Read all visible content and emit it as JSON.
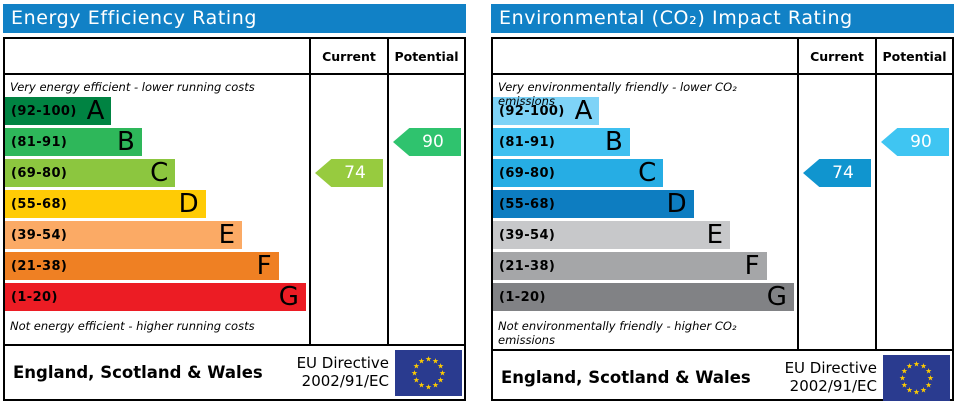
{
  "charts": [
    {
      "title": "Energy Efficiency Rating",
      "header": {
        "current": "Current",
        "potential": "Potential"
      },
      "top_note": "Very energy efficient - lower running costs",
      "bottom_note": "Not energy efficient - higher running costs",
      "bands": [
        {
          "range": "(92-100)",
          "letter": "A",
          "color": "#008342",
          "width_pct": 35
        },
        {
          "range": "(81-91)",
          "letter": "B",
          "color": "#2eb75a",
          "width_pct": 45
        },
        {
          "range": "(69-80)",
          "letter": "C",
          "color": "#8cc63f",
          "width_pct": 56
        },
        {
          "range": "(55-68)",
          "letter": "D",
          "color": "#ffcb05",
          "width_pct": 66
        },
        {
          "range": "(39-54)",
          "letter": "E",
          "color": "#fbaa65",
          "width_pct": 78
        },
        {
          "range": "(21-38)",
          "letter": "F",
          "color": "#ef8023",
          "width_pct": 90
        },
        {
          "range": "(1-20)",
          "letter": "G",
          "color": "#ec1c24",
          "width_pct": 99
        }
      ],
      "current": {
        "value": "74",
        "band": "C",
        "row": 2,
        "color": "#97cb3f"
      },
      "potential": {
        "value": "90",
        "band": "B",
        "row": 1,
        "color": "#2fc36e"
      },
      "footer": {
        "region": "England, Scotland & Wales",
        "directive": [
          "EU Directive",
          "2002/91/EC"
        ],
        "flag_colors": {
          "field": "#2a3b8f",
          "stars": "#ffcc00"
        }
      }
    },
    {
      "title": "Environmental (CO₂) Impact Rating",
      "header": {
        "current": "Current",
        "potential": "Potential"
      },
      "top_note": "Very environmentally friendly - lower CO₂ emissions",
      "bottom_note": "Not environmentally friendly - higher CO₂ emissions",
      "bands": [
        {
          "range": "(92-100)",
          "letter": "A",
          "color": "#7ed3f7",
          "width_pct": 35
        },
        {
          "range": "(81-91)",
          "letter": "B",
          "color": "#3fc0f0",
          "width_pct": 45
        },
        {
          "range": "(69-80)",
          "letter": "C",
          "color": "#26ade4",
          "width_pct": 56
        },
        {
          "range": "(55-68)",
          "letter": "D",
          "color": "#0d7dc1",
          "width_pct": 66
        },
        {
          "range": "(39-54)",
          "letter": "E",
          "color": "#c7c8ca",
          "width_pct": 78
        },
        {
          "range": "(21-38)",
          "letter": "F",
          "color": "#a5a6a8",
          "width_pct": 90
        },
        {
          "range": "(1-20)",
          "letter": "G",
          "color": "#818285",
          "width_pct": 99
        }
      ],
      "current": {
        "value": "74",
        "band": "C",
        "row": 2,
        "color": "#1095cf"
      },
      "potential": {
        "value": "90",
        "band": "B",
        "row": 1,
        "color": "#3fc5f2"
      },
      "footer": {
        "region": "England, Scotland & Wales",
        "directive": [
          "EU Directive",
          "2002/91/EC"
        ],
        "flag_colors": {
          "field": "#2a3b8f",
          "stars": "#ffcc00"
        }
      }
    }
  ],
  "ui_colors": {
    "title_bar": "#1181c6"
  },
  "chart_data": [
    {
      "type": "table",
      "title": "Energy Efficiency Rating",
      "bands": [
        {
          "letter": "A",
          "min": 92,
          "max": 100
        },
        {
          "letter": "B",
          "min": 81,
          "max": 91
        },
        {
          "letter": "C",
          "min": 69,
          "max": 80
        },
        {
          "letter": "D",
          "min": 55,
          "max": 68
        },
        {
          "letter": "E",
          "min": 39,
          "max": 54
        },
        {
          "letter": "F",
          "min": 21,
          "max": 38
        },
        {
          "letter": "G",
          "min": 1,
          "max": 20
        }
      ],
      "current": {
        "value": 74,
        "band": "C"
      },
      "potential": {
        "value": 90,
        "band": "B"
      }
    },
    {
      "type": "table",
      "title": "Environmental (CO₂) Impact Rating",
      "bands": [
        {
          "letter": "A",
          "min": 92,
          "max": 100
        },
        {
          "letter": "B",
          "min": 81,
          "max": 91
        },
        {
          "letter": "C",
          "min": 69,
          "max": 80
        },
        {
          "letter": "D",
          "min": 55,
          "max": 68
        },
        {
          "letter": "E",
          "min": 39,
          "max": 54
        },
        {
          "letter": "F",
          "min": 21,
          "max": 38
        },
        {
          "letter": "G",
          "min": 1,
          "max": 20
        }
      ],
      "current": {
        "value": 74,
        "band": "C"
      },
      "potential": {
        "value": 90,
        "band": "B"
      }
    }
  ]
}
